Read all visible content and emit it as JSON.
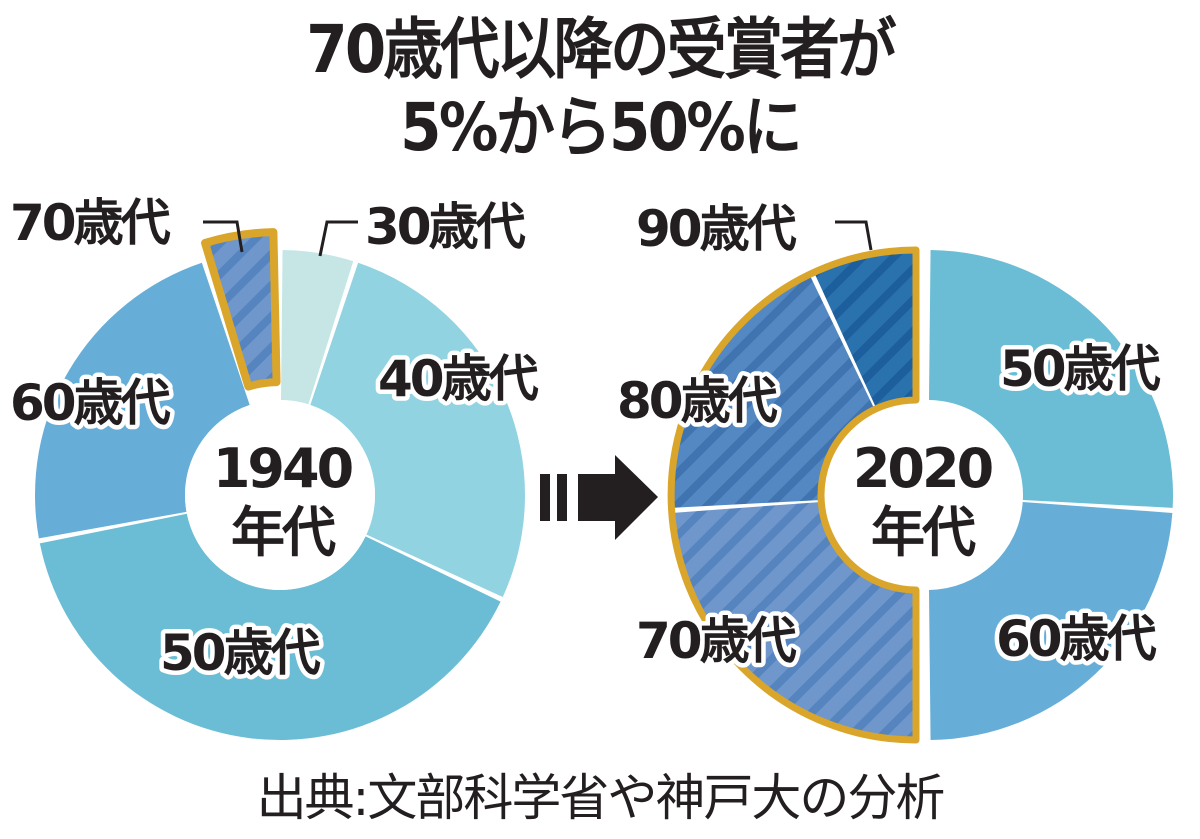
{
  "title": {
    "line1": "70歳代以降の受賞者が",
    "line2": "5%から50%に"
  },
  "source": "出典:文部科学省や神戸大の分析",
  "colors": {
    "age30": "#c6e6e6",
    "age40": "#92d3e2",
    "age50": "#6abdd4",
    "age60": "#66aed8",
    "age70": "#6f97cc",
    "age70_stripe": "#5584bf",
    "age80": "#5488c2",
    "age80_stripe": "#3f74b0",
    "age90": "#2a72ae",
    "age90_stripe": "#1c5f9c",
    "highlight_outline": "#d9a52a",
    "text": "#231f20"
  },
  "left_chart": {
    "center_line1": "1940",
    "center_line2": "年代",
    "labels": {
      "age70": "70歳代",
      "age30": "30歳代",
      "age40": "40歳代",
      "age60": "60歳代",
      "age50": "50歳代"
    }
  },
  "right_chart": {
    "center_line1": "2020",
    "center_line2": "年代",
    "labels": {
      "age90": "90歳代",
      "age80": "80歳代",
      "age50": "50歳代",
      "age70": "70歳代",
      "age60": "60歳代"
    }
  },
  "chart_data": [
    {
      "type": "pie",
      "subtype": "donut",
      "title": "1940年代",
      "categories": [
        "30歳代",
        "40歳代",
        "50歳代",
        "60歳代",
        "70歳代"
      ],
      "values": [
        5,
        27,
        40,
        23,
        5
      ],
      "unit": "%",
      "highlighted": [
        "70歳代"
      ],
      "start_angle_deg": 0,
      "direction": "clockwise",
      "legend": "none (direct labels)"
    },
    {
      "type": "pie",
      "subtype": "donut",
      "title": "2020年代",
      "categories": [
        "50歳代",
        "60歳代",
        "70歳代",
        "80歳代",
        "90歳代"
      ],
      "values": [
        26,
        24,
        24,
        19,
        7
      ],
      "unit": "%",
      "highlighted": [
        "70歳代",
        "80歳代",
        "90歳代"
      ],
      "highlight_total": 50,
      "start_angle_deg": 0,
      "direction": "clockwise",
      "legend": "none (direct labels)"
    }
  ]
}
